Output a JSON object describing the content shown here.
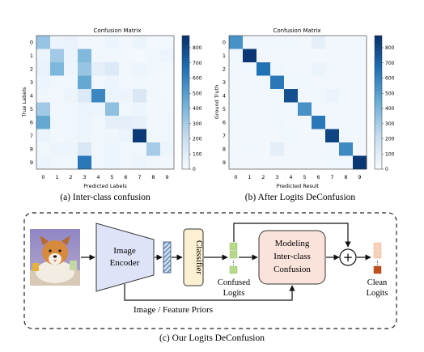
{
  "panel_a": {
    "title": "Confusion Matrix",
    "xlabel": "Predicted Labels",
    "ylabel": "True Labels",
    "caption": "(a) Inter-class confusion",
    "matrix": [
      [
        0.38,
        0.06,
        0.07,
        0.03,
        0.03,
        0.05,
        0.03,
        0.06,
        0.02,
        0.02
      ],
      [
        0.06,
        0.35,
        0.06,
        0.44,
        0.04,
        0.04,
        0.03,
        0.02,
        0.04,
        0.05
      ],
      [
        0.07,
        0.45,
        0.05,
        0.38,
        0.09,
        0.14,
        0.04,
        0.05,
        0.04,
        0.03
      ],
      [
        0.05,
        0.04,
        0.04,
        0.52,
        0.04,
        0.05,
        0.03,
        0.04,
        0.03,
        0.02
      ],
      [
        0.04,
        0.03,
        0.05,
        0.14,
        0.66,
        0.06,
        0.05,
        0.15,
        0.04,
        0.03
      ],
      [
        0.35,
        0.03,
        0.04,
        0.06,
        0.05,
        0.4,
        0.04,
        0.05,
        0.03,
        0.03
      ],
      [
        0.52,
        0.04,
        0.04,
        0.05,
        0.04,
        0.09,
        0.09,
        0.08,
        0.03,
        0.04
      ],
      [
        0.06,
        0.03,
        0.04,
        0.05,
        0.04,
        0.04,
        0.06,
        0.96,
        0.04,
        0.04
      ],
      [
        0.04,
        0.05,
        0.05,
        0.15,
        0.04,
        0.05,
        0.04,
        0.04,
        0.34,
        0.05
      ],
      [
        0.05,
        0.04,
        0.04,
        0.72,
        0.04,
        0.05,
        0.04,
        0.05,
        0.04,
        0.03
      ]
    ]
  },
  "panel_b": {
    "title": "Confusion Matrix",
    "xlabel": "Predicted Result",
    "ylabel": "Ground Truth",
    "caption": "(b) After Logits DeConfusion",
    "matrix": [
      [
        0.62,
        0.04,
        0.04,
        0.04,
        0.04,
        0.03,
        0.09,
        0.03,
        0.03,
        0.03
      ],
      [
        0.04,
        0.97,
        0.03,
        0.03,
        0.03,
        0.03,
        0.03,
        0.03,
        0.03,
        0.03
      ],
      [
        0.03,
        0.04,
        0.75,
        0.04,
        0.03,
        0.03,
        0.06,
        0.04,
        0.03,
        0.03
      ],
      [
        0.03,
        0.03,
        0.04,
        0.72,
        0.04,
        0.04,
        0.03,
        0.03,
        0.03,
        0.03
      ],
      [
        0.03,
        0.03,
        0.03,
        0.04,
        0.88,
        0.03,
        0.04,
        0.06,
        0.03,
        0.03
      ],
      [
        0.04,
        0.03,
        0.03,
        0.04,
        0.04,
        0.62,
        0.03,
        0.03,
        0.03,
        0.03
      ],
      [
        0.03,
        0.03,
        0.03,
        0.04,
        0.03,
        0.03,
        0.72,
        0.03,
        0.03,
        0.03
      ],
      [
        0.03,
        0.03,
        0.03,
        0.03,
        0.04,
        0.03,
        0.03,
        0.92,
        0.04,
        0.03
      ],
      [
        0.03,
        0.04,
        0.03,
        0.1,
        0.03,
        0.03,
        0.03,
        0.04,
        0.65,
        0.03
      ],
      [
        0.03,
        0.03,
        0.03,
        0.03,
        0.03,
        0.03,
        0.03,
        0.04,
        0.04,
        0.97
      ]
    ]
  },
  "axis_ticks": [
    "0",
    "1",
    "2",
    "3",
    "4",
    "5",
    "6",
    "7",
    "8",
    "9"
  ],
  "colorbar_ticks": [
    "800",
    "700",
    "600",
    "500",
    "400",
    "300",
    "200",
    "100",
    "0"
  ],
  "colormap": [
    "#f7fbff",
    "#c6dbef",
    "#6baed6",
    "#2171b5",
    "#08306b"
  ],
  "diagram": {
    "encoder_label_1": "Image",
    "encoder_label_2": "Encoder",
    "classifier_label": "Classifier",
    "confused_label_1": "Confused",
    "confused_label_2": "Logits",
    "modeling_label_1": "Modeling",
    "modeling_label_2": "Inter-class",
    "modeling_label_3": "Confusion",
    "plus_symbol": "+",
    "clean_label_1": "Clean",
    "clean_label_2": "Logits",
    "priors_label": "Image / Feature Priors",
    "caption": "(c) Our Logits DeConfusion",
    "colors": {
      "encoder_fill": "#dfe3f7",
      "classifier_fill": "#fdf0d2",
      "modeling_fill": "#fbe3dc",
      "confused_logit": "#b8d98a",
      "clean_logit_top": "#f7d1b8",
      "clean_logit_bottom": "#c1501c"
    }
  }
}
